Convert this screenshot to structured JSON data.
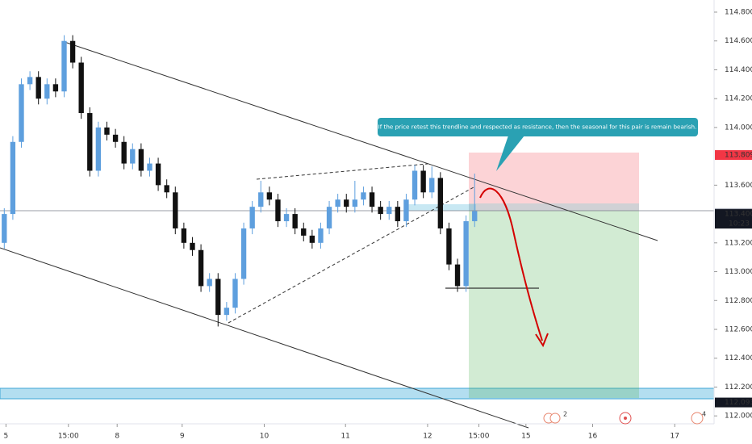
{
  "chart_data": {
    "type": "candlestick",
    "x": [
      0,
      1,
      2,
      3,
      4,
      5,
      6,
      7,
      8,
      9,
      10,
      11,
      12,
      13,
      14,
      15,
      16,
      17,
      18,
      19,
      20,
      21,
      22,
      23,
      24,
      25,
      26,
      27,
      28,
      29,
      30,
      31,
      32,
      33,
      34,
      35,
      36,
      37,
      38,
      39,
      40,
      41,
      42,
      43,
      44,
      45,
      46,
      47,
      48,
      49,
      50,
      51,
      52,
      53,
      54,
      55
    ],
    "open": [
      113.2,
      113.4,
      113.9,
      114.3,
      114.35,
      114.2,
      114.3,
      114.25,
      114.6,
      114.45,
      114.1,
      113.7,
      114.0,
      113.95,
      113.9,
      113.75,
      113.85,
      113.7,
      113.75,
      113.6,
      113.55,
      113.3,
      113.2,
      113.15,
      112.9,
      112.95,
      112.7,
      112.75,
      112.95,
      113.3,
      113.45,
      113.55,
      113.5,
      113.35,
      113.4,
      113.3,
      113.25,
      113.2,
      113.3,
      113.45,
      113.5,
      113.45,
      113.5,
      113.55,
      113.45,
      113.4,
      113.45,
      113.35,
      113.5,
      113.7,
      113.55,
      113.65,
      113.3,
      113.05,
      112.9,
      113.35
    ],
    "high": [
      113.44,
      113.94,
      114.34,
      114.39,
      114.39,
      114.34,
      114.34,
      114.64,
      114.64,
      114.49,
      114.14,
      114.04,
      114.04,
      113.99,
      113.94,
      113.89,
      113.89,
      113.79,
      113.79,
      113.64,
      113.59,
      113.34,
      113.24,
      113.19,
      112.99,
      112.99,
      112.79,
      112.99,
      113.34,
      113.49,
      113.63,
      113.59,
      113.54,
      113.44,
      113.44,
      113.34,
      113.29,
      113.34,
      113.49,
      113.54,
      113.54,
      113.63,
      113.59,
      113.59,
      113.49,
      113.49,
      113.49,
      113.54,
      113.74,
      113.74,
      113.73,
      113.69,
      113.34,
      113.09,
      113.39,
      113.68
    ],
    "low": [
      113.16,
      113.36,
      113.86,
      114.26,
      114.16,
      114.16,
      114.21,
      114.21,
      114.41,
      114.06,
      113.66,
      113.66,
      113.91,
      113.86,
      113.71,
      113.71,
      113.66,
      113.66,
      113.56,
      113.51,
      113.26,
      113.16,
      113.11,
      112.86,
      112.86,
      112.62,
      112.66,
      112.71,
      112.91,
      113.26,
      113.41,
      113.46,
      113.31,
      113.31,
      113.26,
      113.21,
      113.16,
      113.16,
      113.26,
      113.41,
      113.41,
      113.41,
      113.46,
      113.41,
      113.36,
      113.36,
      113.31,
      113.31,
      113.46,
      113.51,
      113.51,
      113.26,
      113.01,
      112.86,
      112.86,
      113.31
    ],
    "close": [
      113.4,
      113.9,
      114.3,
      114.35,
      114.2,
      114.3,
      114.25,
      114.6,
      114.45,
      114.1,
      113.7,
      114.0,
      113.95,
      113.9,
      113.75,
      113.85,
      113.7,
      113.75,
      113.6,
      113.55,
      113.3,
      113.2,
      113.15,
      112.9,
      112.95,
      112.7,
      112.75,
      112.95,
      113.3,
      113.45,
      113.55,
      113.5,
      113.35,
      113.4,
      113.3,
      113.25,
      113.2,
      113.3,
      113.45,
      113.5,
      113.45,
      113.5,
      113.55,
      113.45,
      113.4,
      113.45,
      113.35,
      113.5,
      113.7,
      113.55,
      113.65,
      113.3,
      113.05,
      112.9,
      113.35,
      113.42
    ],
    "up_color": "#5e9fde",
    "down_color": "#111111",
    "xlim": [
      -0.5,
      83
    ],
    "xticks": [
      {
        "value": 0.2,
        "label": "5"
      },
      {
        "value": 7.5,
        "label": "15:00"
      },
      {
        "value": 13.2,
        "label": "8"
      },
      {
        "value": 20.8,
        "label": "9"
      },
      {
        "value": 30.4,
        "label": "10"
      },
      {
        "value": 39.9,
        "label": "11"
      },
      {
        "value": 49.5,
        "label": "12"
      },
      {
        "value": 55.5,
        "label": "15:00"
      },
      {
        "value": 61,
        "label": "15"
      },
      {
        "value": 68.8,
        "label": "16"
      },
      {
        "value": 78.4,
        "label": "17"
      }
    ],
    "ylim": [
      111.945,
      114.884
    ],
    "yticks": [
      {
        "value": 114.8,
        "label": "114.800"
      },
      {
        "value": 114.6,
        "label": "114.600"
      },
      {
        "value": 114.4,
        "label": "114.400"
      },
      {
        "value": 114.2,
        "label": "114.200"
      },
      {
        "value": 114.0,
        "label": "114.000"
      },
      {
        "value": 113.6,
        "label": "113.600"
      },
      {
        "value": 113.2,
        "label": "113.200"
      },
      {
        "value": 113.0,
        "label": "113.000"
      },
      {
        "value": 112.8,
        "label": "112.800"
      },
      {
        "value": 112.6,
        "label": "112.600"
      },
      {
        "value": 112.4,
        "label": "112.400"
      },
      {
        "value": 112.2,
        "label": "112.200"
      },
      {
        "value": 112.0,
        "label": "112.000"
      }
    ],
    "price_labels": [
      {
        "value": 113.809,
        "color": "#f23645"
      },
      {
        "value": {
          "value": 113.407,
          "label": "113.407"
        },
        "color": "#b2b5be"
      },
      {
        "value": {
          "value": 113.4,
          "label": "113.400"
        },
        "color": "#131722",
        "countdown": "10:23"
      },
      {
        "value": 112.093,
        "color": "#131722"
      }
    ],
    "annotation": "If the price retest this trendline and respected as resistance, then the seasonal for this pair is remain bearish.",
    "event_badges": [
      "2",
      "4"
    ]
  }
}
